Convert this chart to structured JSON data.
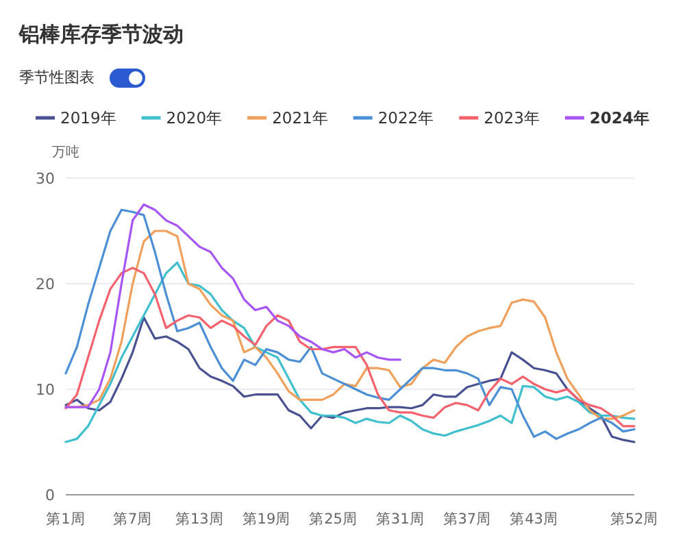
{
  "chart_data": {
    "type": "line",
    "title": "铝棒库存季节波动",
    "annotations": [
      "季节性图表"
    ],
    "ylabel": "万吨",
    "categories": [
      "第1周",
      null,
      null,
      null,
      null,
      null,
      "第7周",
      null,
      null,
      null,
      null,
      null,
      "第13周",
      null,
      null,
      null,
      null,
      null,
      "第19周",
      null,
      null,
      null,
      null,
      null,
      "第25周",
      null,
      null,
      null,
      null,
      null,
      "第31周",
      null,
      null,
      null,
      null,
      null,
      "第37周",
      null,
      null,
      null,
      null,
      null,
      "第43周",
      null,
      null,
      null,
      null,
      null,
      null,
      null,
      null,
      "第52周"
    ],
    "ylim": [
      0,
      30
    ],
    "yticks": [
      0,
      10,
      20,
      30
    ],
    "grid": "y",
    "legend": "top",
    "marker": "none",
    "line_style": "solid",
    "series": [
      {
        "name": "2019年",
        "color": "#4a5193",
        "values": [
          8.5,
          9,
          8.2,
          8,
          8.8,
          11,
          13.5,
          16.8,
          14.8,
          15,
          14.5,
          13.8,
          12,
          11.2,
          10.8,
          10.3,
          9.3,
          9.5,
          9.5,
          9.5,
          8,
          7.5,
          6.3,
          7.5,
          7.3,
          7.8,
          8,
          8.2,
          8.2,
          8.3,
          8.3,
          8.2,
          8.5,
          9.5,
          9.3,
          9.3,
          10.2,
          10.5,
          10.8,
          11,
          13.5,
          12.8,
          12,
          11.8,
          11.5,
          10,
          9,
          8.2,
          7.5,
          5.5,
          5.2,
          5
        ]
      },
      {
        "name": "2020年",
        "color": "#40bfcf",
        "values": [
          5,
          5.3,
          6.5,
          8.5,
          10.5,
          13,
          15,
          17,
          19,
          21,
          22,
          20,
          19.8,
          19,
          17.5,
          16.5,
          15.8,
          14,
          13.5,
          13,
          11,
          9,
          7.8,
          7.5,
          7.5,
          7.3,
          6.8,
          7.2,
          6.9,
          6.8,
          7.5,
          7,
          6.2,
          5.8,
          5.6,
          6,
          6.3,
          6.6,
          7,
          7.5,
          6.8,
          10.3,
          10.2,
          9.3,
          9,
          9.3,
          8.8,
          7.8,
          7.5,
          7.5,
          7.3,
          7.2
        ]
      },
      {
        "name": "2021年",
        "color": "#f0a05a",
        "values": [
          8.3,
          8.3,
          8.5,
          9,
          11,
          14.5,
          20,
          24,
          25,
          25,
          24.5,
          20,
          19.5,
          18,
          17,
          16.5,
          13.5,
          14,
          13,
          11.5,
          9.8,
          9,
          9,
          9,
          9.5,
          10.5,
          10.3,
          12,
          12,
          11.8,
          10.2,
          10.5,
          12,
          12.8,
          12.5,
          14,
          15,
          15.5,
          15.8,
          16,
          18.2,
          18.5,
          18.3,
          16.8,
          13.5,
          11,
          9.5,
          8,
          7.2,
          7.2,
          7.5,
          8
        ]
      },
      {
        "name": "2022年",
        "color": "#4b8fd6",
        "values": [
          11.5,
          14,
          18,
          21.5,
          25,
          27,
          26.8,
          26.5,
          23,
          19,
          15.5,
          15.8,
          16.3,
          14,
          12,
          10.8,
          12.8,
          12.3,
          13.8,
          13.5,
          12.8,
          12.6,
          14,
          11.5,
          11,
          10.5,
          10,
          9.5,
          9.2,
          9,
          10,
          11,
          12,
          12,
          11.8,
          11.8,
          11.5,
          11,
          8.5,
          10.2,
          10,
          7.5,
          5.5,
          6,
          5.3,
          5.8,
          6.2,
          6.8,
          7.3,
          6.8,
          6,
          6.2
        ]
      },
      {
        "name": "2023年",
        "color": "#f5626e",
        "values": [
          8.2,
          9.5,
          13,
          16.5,
          19.5,
          21,
          21.5,
          21,
          19,
          15.8,
          16.5,
          17,
          16.8,
          15.8,
          16.5,
          16,
          15,
          14.2,
          16,
          17,
          16.5,
          14.5,
          13.8,
          13.8,
          14,
          14,
          14,
          12.3,
          9.5,
          8,
          7.8,
          7.8,
          7.5,
          7.3,
          8.3,
          8.7,
          8.5,
          8,
          9.8,
          11,
          10.5,
          11.2,
          10.5,
          10,
          9.7,
          10,
          9,
          8.5,
          8.2,
          7.5,
          6.5,
          6.5
        ]
      },
      {
        "name": "2024年",
        "color": "#a855f7",
        "values": [
          8.3,
          8.3,
          8.3,
          10,
          13.5,
          20,
          26,
          27.5,
          27,
          26,
          25.5,
          24.5,
          23.5,
          23,
          21.5,
          20.5,
          18.5,
          17.5,
          17.8,
          16.5,
          16,
          15,
          14.5,
          13.8,
          13.5,
          13.8,
          13,
          13.5,
          13,
          12.8,
          12.8,
          null,
          null,
          null,
          null,
          null,
          null,
          null,
          null,
          null,
          null,
          null,
          null,
          null,
          null,
          null,
          null,
          null,
          null,
          null,
          null,
          null
        ]
      }
    ]
  }
}
